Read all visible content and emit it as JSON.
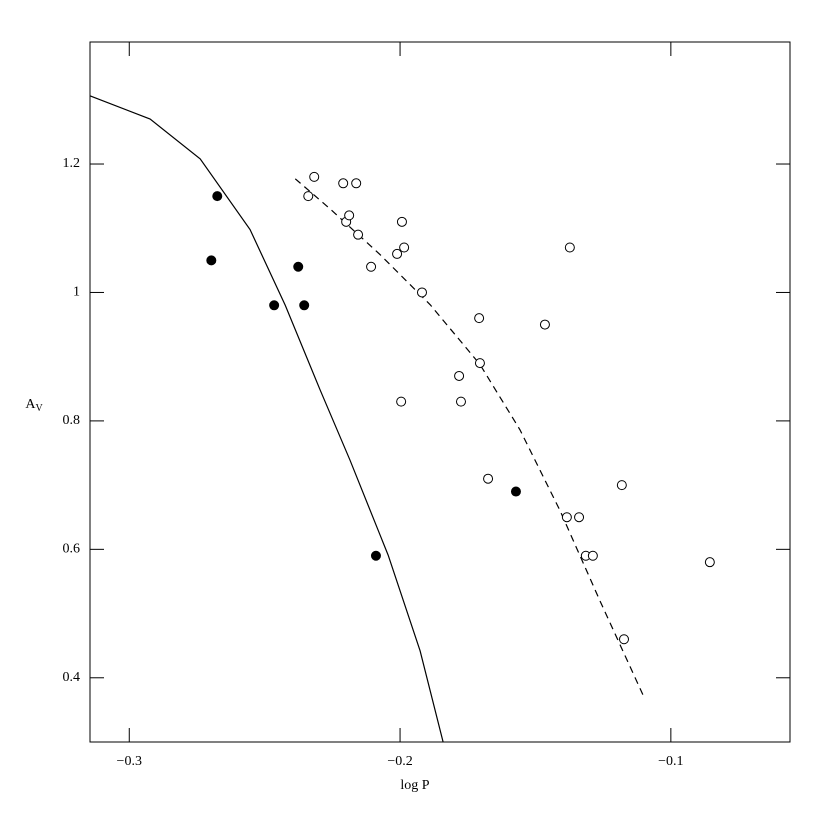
{
  "chart_data": {
    "type": "scatter",
    "xlabel": "log P",
    "ylabel": "A",
    "ylabel_subscript": "V",
    "xlim": [
      -0.3145,
      -0.056
    ],
    "ylim": [
      0.3,
      1.39
    ],
    "xticks": [
      {
        "value": -0.3,
        "label": "−0.3"
      },
      {
        "value": -0.2,
        "label": "−0.2"
      },
      {
        "value": -0.1,
        "label": "−0.1"
      }
    ],
    "yticks": [
      0.4,
      0.6,
      0.8,
      1,
      1.2
    ],
    "series": [
      {
        "marker": "filled",
        "color": "#000000",
        "x": [
          -0.2675,
          -0.2697,
          -0.2465,
          -0.2376,
          -0.2354,
          -0.2089,
          -0.1572
        ],
        "values": [
          1.15,
          1.05,
          0.98,
          1.04,
          0.98,
          0.59,
          0.69
        ]
      },
      {
        "marker": "open",
        "color": "#000000",
        "x": [
          -0.2317,
          -0.2339,
          -0.221,
          -0.2162,
          -0.2199,
          -0.2188,
          -0.2155,
          -0.1993,
          -0.1985,
          -0.2011,
          -0.2107,
          -0.1919,
          -0.1708,
          -0.1705,
          -0.1782,
          -0.1775,
          -0.1996,
          -0.1675,
          -0.1465,
          -0.1373,
          -0.1384,
          -0.1339,
          -0.1314,
          -0.1288,
          -0.1181,
          -0.1173,
          -0.0856
        ],
        "values": [
          1.18,
          1.15,
          1.17,
          1.17,
          1.11,
          1.12,
          1.09,
          1.11,
          1.07,
          1.06,
          1.04,
          1.0,
          0.96,
          0.89,
          0.87,
          0.83,
          0.83,
          0.71,
          0.95,
          1.07,
          0.65,
          0.65,
          0.59,
          0.59,
          0.7,
          0.46,
          0.58
        ]
      }
    ],
    "lines": [
      {
        "style": "solid",
        "color": "#000000",
        "x": [
          -0.3144,
          -0.2923,
          -0.2738,
          -0.2554,
          -0.2424,
          -0.2295,
          -0.2185,
          -0.2044,
          -0.1926,
          -0.1841
        ],
        "values": [
          1.306,
          1.27,
          1.208,
          1.098,
          0.98,
          0.848,
          0.739,
          0.591,
          0.442,
          0.3
        ]
      },
      {
        "style": "dashed",
        "color": "#000000",
        "x": [
          -0.2387,
          -0.2258,
          -0.2074,
          -0.1889,
          -0.1705,
          -0.1557,
          -0.141,
          -0.1262,
          -0.1096
        ],
        "values": [
          1.177,
          1.13,
          1.059,
          0.981,
          0.888,
          0.786,
          0.661,
          0.52,
          0.367
        ]
      }
    ]
  }
}
